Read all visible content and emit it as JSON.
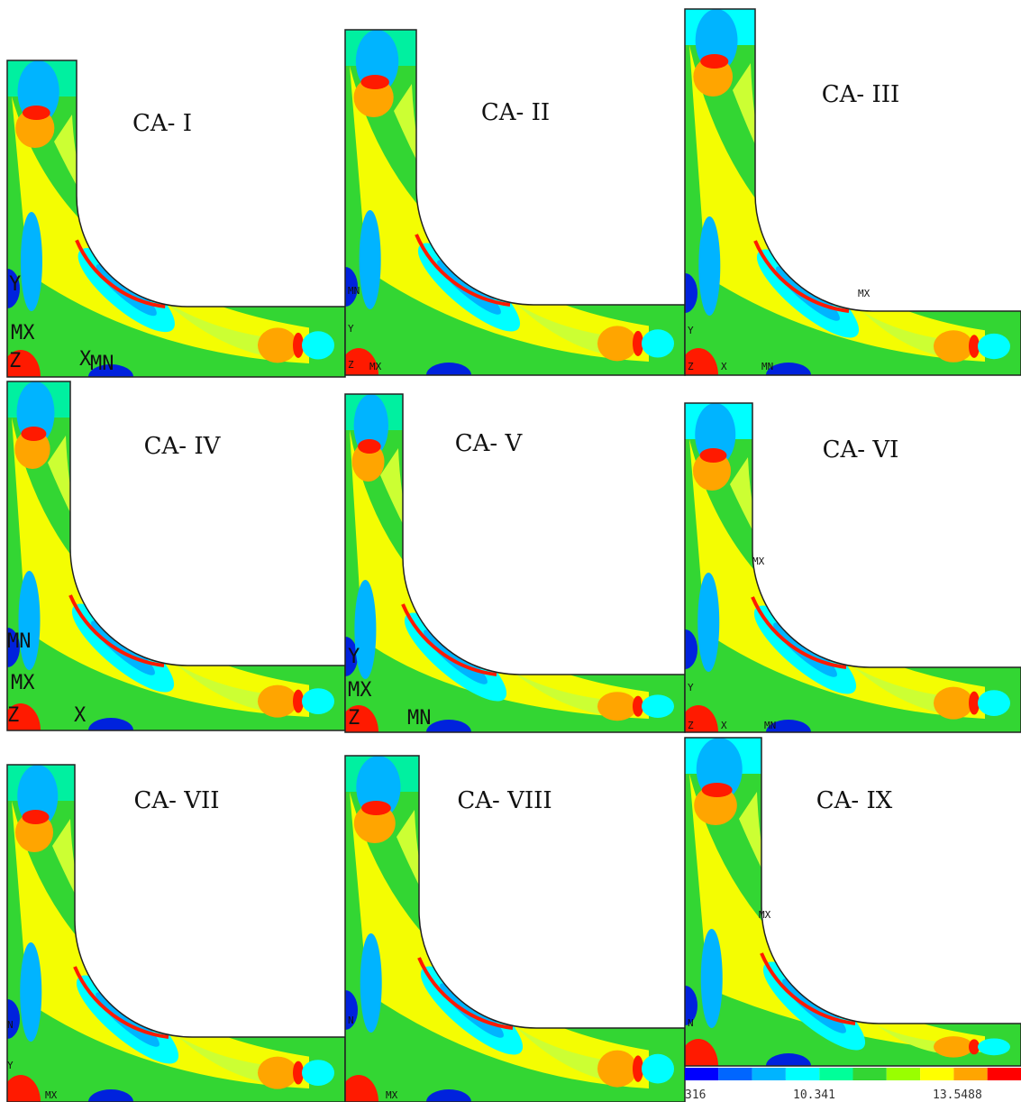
{
  "panels": [
    {
      "label": "CA- I",
      "markers": [
        "Y",
        "MX",
        "Z",
        "X",
        "MN"
      ]
    },
    {
      "label": "CA- II",
      "markers": [
        "MN",
        "Y",
        "Z",
        "MX"
      ]
    },
    {
      "label": "CA- III",
      "markers": [
        "MX",
        "Y",
        "Z",
        "X",
        "MN"
      ]
    },
    {
      "label": "CA- IV",
      "markers": [
        "MN",
        "MX",
        "Z",
        "X"
      ]
    },
    {
      "label": "CA- V",
      "markers": [
        "Y",
        "MX",
        "Z",
        "MN"
      ]
    },
    {
      "label": "CA- VI",
      "markers": [
        "MX",
        "Y",
        "Z",
        "X",
        "MN"
      ]
    },
    {
      "label": "CA- VII",
      "markers": [
        "N",
        "Y",
        "MX"
      ]
    },
    {
      "label": "CA- VIII",
      "markers": [
        "N",
        "MX"
      ]
    },
    {
      "label": "CA- IX",
      "markers": [
        "MX",
        "N"
      ]
    }
  ],
  "colorbar": {
    "labels": [
      "316",
      "10.341",
      "13.5488"
    ]
  }
}
